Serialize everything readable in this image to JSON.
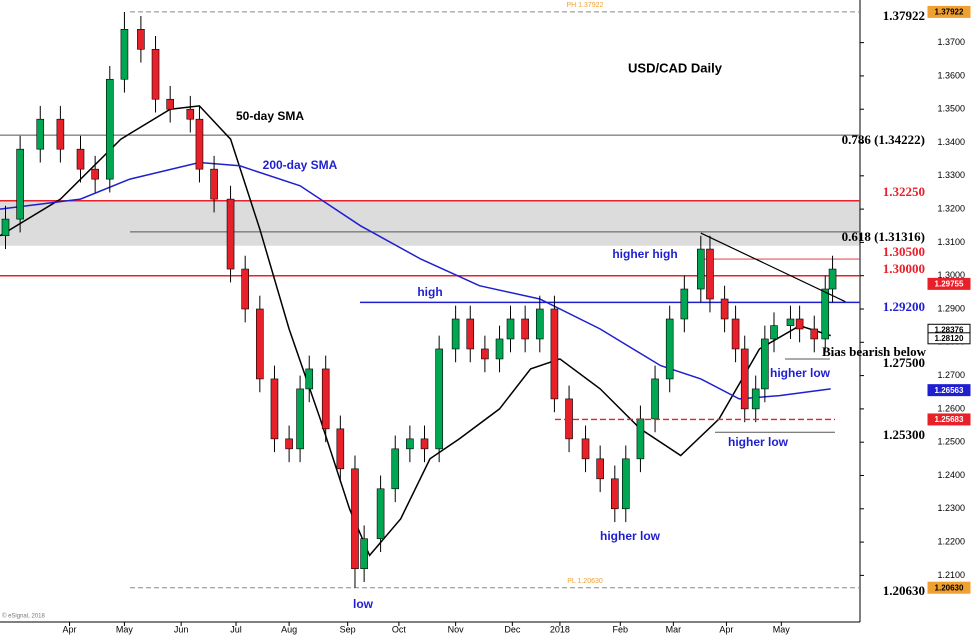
{
  "chart_data": {
    "type": "candlestick",
    "title": "USD/CAD Daily",
    "x": [
      3,
      11,
      22,
      33,
      44,
      52,
      60,
      68,
      77,
      85,
      93,
      104,
      109,
      117,
      126,
      134,
      142,
      150,
      158,
      164,
      169,
      178,
      186,
      194,
      199,
      208,
      216,
      224,
      232,
      240,
      249,
      257,
      265,
      273,
      279,
      287,
      295,
      303,
      311,
      320,
      328,
      336,
      342,
      350,
      358,
      366,
      374,
      383,
      388,
      396,
      402,
      407,
      413,
      418,
      423,
      432,
      437,
      445,
      451,
      455
    ],
    "open": [
      1.312,
      1.317,
      1.338,
      1.347,
      1.338,
      1.332,
      1.329,
      1.359,
      1.374,
      1.368,
      1.353,
      1.35,
      1.347,
      1.332,
      1.323,
      1.302,
      1.29,
      1.269,
      1.251,
      1.248,
      1.266,
      1.272,
      1.254,
      1.242,
      1.212,
      1.221,
      1.236,
      1.248,
      1.251,
      1.248,
      1.278,
      1.287,
      1.278,
      1.275,
      1.281,
      1.287,
      1.281,
      1.29,
      1.263,
      1.251,
      1.245,
      1.239,
      1.23,
      1.245,
      1.257,
      1.269,
      1.287,
      1.296,
      1.308,
      1.293,
      1.287,
      1.278,
      1.26,
      1.266,
      1.281,
      1.285,
      1.287,
      1.284,
      1.281,
      1.296
    ],
    "high": [
      1.321,
      1.342,
      1.351,
      1.351,
      1.342,
      1.336,
      1.363,
      1.3792,
      1.378,
      1.372,
      1.357,
      1.354,
      1.351,
      1.336,
      1.327,
      1.306,
      1.294,
      1.273,
      1.255,
      1.27,
      1.276,
      1.276,
      1.258,
      1.246,
      1.225,
      1.24,
      1.252,
      1.255,
      1.255,
      1.282,
      1.291,
      1.291,
      1.282,
      1.285,
      1.291,
      1.291,
      1.294,
      1.294,
      1.267,
      1.255,
      1.249,
      1.243,
      1.249,
      1.261,
      1.273,
      1.291,
      1.3,
      1.312,
      1.312,
      1.297,
      1.291,
      1.282,
      1.27,
      1.285,
      1.289,
      1.291,
      1.291,
      1.288,
      1.3,
      1.306
    ],
    "low": [
      1.308,
      1.313,
      1.334,
      1.334,
      1.328,
      1.325,
      1.325,
      1.355,
      1.364,
      1.349,
      1.346,
      1.343,
      1.328,
      1.319,
      1.298,
      1.286,
      1.265,
      1.247,
      1.244,
      1.244,
      1.262,
      1.25,
      1.238,
      1.2063,
      1.208,
      1.217,
      1.232,
      1.244,
      1.244,
      1.244,
      1.274,
      1.274,
      1.271,
      1.271,
      1.277,
      1.277,
      1.277,
      1.259,
      1.247,
      1.241,
      1.235,
      1.226,
      1.226,
      1.241,
      1.253,
      1.265,
      1.283,
      1.292,
      1.289,
      1.283,
      1.274,
      1.256,
      1.256,
      1.262,
      1.277,
      1.281,
      1.28,
      1.277,
      1.277,
      1.292
    ],
    "close": [
      1.317,
      1.338,
      1.347,
      1.338,
      1.332,
      1.329,
      1.359,
      1.374,
      1.368,
      1.353,
      1.35,
      1.347,
      1.332,
      1.323,
      1.302,
      1.29,
      1.269,
      1.251,
      1.248,
      1.266,
      1.272,
      1.254,
      1.242,
      1.212,
      1.221,
      1.236,
      1.248,
      1.251,
      1.248,
      1.278,
      1.287,
      1.278,
      1.275,
      1.281,
      1.287,
      1.281,
      1.29,
      1.263,
      1.251,
      1.245,
      1.239,
      1.23,
      1.245,
      1.257,
      1.269,
      1.287,
      1.296,
      1.308,
      1.293,
      1.287,
      1.278,
      1.26,
      1.266,
      1.281,
      1.285,
      1.287,
      1.284,
      1.281,
      1.296,
      1.302
    ],
    "up_color": "#00a651",
    "down_color": "#e8202a",
    "series": [
      {
        "name": "50-day SMA",
        "color": "#000000",
        "x": [
          0,
          33,
          66,
          93,
          109,
          126,
          142,
          158,
          175,
          191,
          202,
          219,
          235,
          251,
          273,
          290,
          306,
          328,
          350,
          372,
          393,
          415,
          437,
          454
        ],
        "values": [
          1.312,
          1.323,
          1.341,
          1.35,
          1.351,
          1.341,
          1.314,
          1.284,
          1.257,
          1.23,
          1.216,
          1.227,
          1.245,
          1.251,
          1.26,
          1.272,
          1.275,
          1.266,
          1.254,
          1.246,
          1.257,
          1.278,
          1.285,
          1.282
        ]
      },
      {
        "name": "200-day SMA",
        "color": "#1f1fd0",
        "x": [
          0,
          44,
          71,
          109,
          131,
          164,
          197,
          230,
          262,
          295,
          328,
          361,
          383,
          404,
          426,
          454
        ],
        "values": [
          1.32,
          1.323,
          1.329,
          1.334,
          1.333,
          1.327,
          1.315,
          1.305,
          1.297,
          1.293,
          1.284,
          1.273,
          1.269,
          1.263,
          1.264,
          1.266
        ]
      }
    ],
    "zone": [
      1.309,
      1.3225
    ],
    "trendline": {
      "x": [
        383,
        462
      ],
      "values": [
        1.3128,
        1.2922
      ]
    },
    "levels": [
      {
        "value": 1.37922,
        "label": "1.37922",
        "color": "#000000"
      },
      {
        "value": 1.34222,
        "label": "0.786 (1.34222)",
        "color": "#000000"
      },
      {
        "value": 1.3225,
        "label": "1.32250",
        "color": "#e8202a"
      },
      {
        "value": 1.31316,
        "label": "0.618 (1.31316)",
        "color": "#000000"
      },
      {
        "value": 1.305,
        "label": "1.30500",
        "color": "#e8202a"
      },
      {
        "value": 1.3,
        "label": "1.30000",
        "color": "#e8202a"
      },
      {
        "value": 1.292,
        "label": "1.29200",
        "color": "#1f1fd0"
      },
      {
        "value": 1.275,
        "label": "1.27500",
        "color": "#000000"
      },
      {
        "value": 1.253,
        "label": "1.25300",
        "color": "#000000"
      },
      {
        "value": 1.2063,
        "label": "1.20630",
        "color": "#000000"
      }
    ],
    "price_markers": [
      {
        "value": 1.37922,
        "label": "1.37922",
        "color": "#f0a030"
      },
      {
        "value": 1.29755,
        "label": "1.29755",
        "color": "#e8202a"
      },
      {
        "value": 1.28376,
        "label": "1.28376",
        "color": "#ffffff"
      },
      {
        "value": 1.2812,
        "label": "1.28120",
        "color": "#ffffff"
      },
      {
        "value": 1.26563,
        "label": "1.26563",
        "color": "#1f1fd0"
      },
      {
        "value": 1.25683,
        "label": "1.25683",
        "color": "#e8202a"
      },
      {
        "value": 1.2063,
        "label": "1.20630",
        "color": "#f0a030"
      }
    ],
    "annotations": [
      {
        "text": "50-day SMA",
        "color": "#000000"
      },
      {
        "text": "200-day SMA",
        "color": "#1f1fd0"
      },
      {
        "text": "higher high",
        "color": "#1f1fd0"
      },
      {
        "text": "high",
        "color": "#1f1fd0"
      },
      {
        "text": "higher low",
        "color": "#1f1fd0"
      },
      {
        "text": "Bias bearish below",
        "color": "#000000"
      },
      {
        "text": "higher low",
        "color": "#1f1fd0"
      },
      {
        "text": "higher low",
        "color": "#1f1fd0"
      },
      {
        "text": "low",
        "color": "#1f1fd0"
      },
      {
        "text": "PH 1.37922",
        "color": "#f0a030"
      },
      {
        "text": "PL 1.20630",
        "color": "#f0a030"
      },
      {
        "text": "© eSignal, 2018",
        "color": "#777777"
      }
    ],
    "xlim": [
      0,
      470
    ],
    "ylim": [
      1.196,
      1.3828
    ],
    "xticks": [
      {
        "value": 38,
        "label": "Apr"
      },
      {
        "value": 68,
        "label": "May"
      },
      {
        "value": 99,
        "label": "Jun"
      },
      {
        "value": 129,
        "label": "Jul"
      },
      {
        "value": 158,
        "label": "Aug"
      },
      {
        "value": 190,
        "label": "Sep"
      },
      {
        "value": 218,
        "label": "Oct"
      },
      {
        "value": 249,
        "label": "Nov"
      },
      {
        "value": 280,
        "label": "Dec"
      },
      {
        "value": 306,
        "label": "2018"
      },
      {
        "value": 339,
        "label": "Feb"
      },
      {
        "value": 368,
        "label": "Mar"
      },
      {
        "value": 397,
        "label": "Apr"
      },
      {
        "value": 427,
        "label": "May"
      }
    ],
    "yticks": [
      {
        "value": 1.21,
        "label": "1.2100"
      },
      {
        "value": 1.22,
        "label": "1.2200"
      },
      {
        "value": 1.23,
        "label": "1.2300"
      },
      {
        "value": 1.24,
        "label": "1.2400"
      },
      {
        "value": 1.25,
        "label": "1.2500"
      },
      {
        "value": 1.26,
        "label": "1.2600"
      },
      {
        "value": 1.27,
        "label": "1.2700"
      },
      {
        "value": 1.28,
        "label": "1.2800"
      },
      {
        "value": 1.29,
        "label": "1.2900"
      },
      {
        "value": 1.3,
        "label": "1.3000"
      },
      {
        "value": 1.31,
        "label": "1.3100"
      },
      {
        "value": 1.32,
        "label": "1.3200"
      },
      {
        "value": 1.33,
        "label": "1.3300"
      },
      {
        "value": 1.34,
        "label": "1.3400"
      },
      {
        "value": 1.35,
        "label": "1.3500"
      },
      {
        "value": 1.36,
        "label": "1.3600"
      },
      {
        "value": 1.37,
        "label": "1.3700"
      }
    ]
  }
}
